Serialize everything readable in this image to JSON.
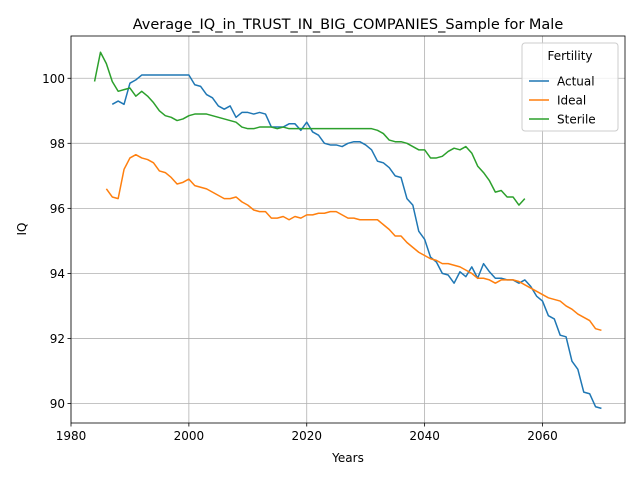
{
  "chart_data": {
    "type": "line",
    "title": "Average_IQ_in_TRUST_IN_BIG_COMPANIES_Sample for Male",
    "xlabel": "Years",
    "ylabel": "IQ",
    "xlim": [
      1980,
      2074
    ],
    "ylim": [
      89.4,
      101.3
    ],
    "xticks": [
      1980,
      2000,
      2020,
      2040,
      2060
    ],
    "yticks": [
      90,
      92,
      94,
      96,
      98,
      100
    ],
    "grid": true,
    "legend": {
      "title": "Fertility",
      "placement": "top-right"
    },
    "series": [
      {
        "name": "Actual",
        "color": "#1f77b4",
        "x": [
          1987,
          1988,
          1989,
          1990,
          1991,
          1992,
          1993,
          1994,
          1995,
          1996,
          1997,
          1998,
          1999,
          2000,
          2001,
          2002,
          2003,
          2004,
          2005,
          2006,
          2007,
          2008,
          2009,
          2010,
          2011,
          2012,
          2013,
          2014,
          2015,
          2016,
          2017,
          2018,
          2019,
          2020,
          2021,
          2022,
          2023,
          2024,
          2025,
          2026,
          2027,
          2028,
          2029,
          2030,
          2031,
          2032,
          2033,
          2034,
          2035,
          2036,
          2037,
          2038,
          2039,
          2040,
          2041,
          2042,
          2043,
          2044,
          2045,
          2046,
          2047,
          2048,
          2049,
          2050,
          2051,
          2052,
          2053,
          2054,
          2055,
          2056,
          2057,
          2058,
          2059,
          2060,
          2061,
          2062,
          2063,
          2064,
          2065,
          2066,
          2067,
          2068,
          2069,
          2070
        ],
        "values": [
          99.2,
          99.3,
          99.2,
          99.85,
          99.95,
          100.1,
          100.1,
          100.1,
          100.1,
          100.1,
          100.1,
          100.1,
          100.1,
          100.1,
          99.8,
          99.75,
          99.5,
          99.4,
          99.15,
          99.05,
          99.15,
          98.8,
          98.95,
          98.95,
          98.9,
          98.95,
          98.9,
          98.5,
          98.5,
          98.5,
          98.6,
          98.6,
          98.4,
          98.65,
          98.35,
          98.25,
          98.0,
          97.95,
          97.95,
          97.9,
          98.0,
          98.05,
          98.05,
          97.95,
          97.8,
          97.45,
          97.4,
          97.25,
          97.0,
          96.95,
          96.3,
          96.1,
          95.3,
          95.05,
          94.5,
          94.35,
          94.0,
          93.95,
          93.7,
          94.05,
          93.9,
          94.2,
          93.85,
          94.3,
          94.05,
          93.85,
          93.85,
          93.8,
          93.8,
          93.7,
          93.8,
          93.6,
          93.3,
          93.15,
          92.7,
          92.6,
          92.1,
          92.05,
          91.3,
          91.05,
          90.35,
          90.3,
          89.9,
          89.85
        ]
      },
      {
        "name": "Ideal",
        "color": "#ff7f0e",
        "x": [
          1986,
          1987,
          1988,
          1989,
          1990,
          1991,
          1992,
          1993,
          1994,
          1995,
          1996,
          1997,
          1998,
          1999,
          2000,
          2001,
          2002,
          2003,
          2004,
          2005,
          2006,
          2007,
          2008,
          2009,
          2010,
          2011,
          2012,
          2013,
          2014,
          2015,
          2016,
          2017,
          2018,
          2019,
          2020,
          2021,
          2022,
          2023,
          2024,
          2025,
          2026,
          2027,
          2028,
          2029,
          2030,
          2031,
          2032,
          2033,
          2034,
          2035,
          2036,
          2037,
          2038,
          2039,
          2040,
          2041,
          2042,
          2043,
          2044,
          2045,
          2046,
          2047,
          2048,
          2049,
          2050,
          2051,
          2052,
          2053,
          2054,
          2055,
          2056,
          2057,
          2058,
          2059,
          2060,
          2061,
          2062,
          2063,
          2064,
          2065,
          2066,
          2067,
          2068,
          2069,
          2070
        ],
        "values": [
          96.6,
          96.35,
          96.3,
          97.2,
          97.55,
          97.65,
          97.55,
          97.5,
          97.4,
          97.15,
          97.1,
          96.95,
          96.75,
          96.8,
          96.9,
          96.7,
          96.65,
          96.6,
          96.5,
          96.4,
          96.3,
          96.3,
          96.35,
          96.2,
          96.1,
          95.95,
          95.9,
          95.9,
          95.7,
          95.7,
          95.75,
          95.65,
          95.75,
          95.7,
          95.8,
          95.8,
          95.85,
          95.85,
          95.9,
          95.9,
          95.8,
          95.7,
          95.7,
          95.65,
          95.65,
          95.65,
          95.65,
          95.5,
          95.35,
          95.15,
          95.15,
          94.95,
          94.8,
          94.65,
          94.55,
          94.45,
          94.4,
          94.3,
          94.3,
          94.25,
          94.2,
          94.1,
          94.0,
          93.85,
          93.85,
          93.8,
          93.7,
          93.8,
          93.8,
          93.8,
          93.75,
          93.65,
          93.55,
          93.45,
          93.35,
          93.25,
          93.2,
          93.15,
          93.0,
          92.9,
          92.75,
          92.65,
          92.55,
          92.3,
          92.25
        ]
      },
      {
        "name": "Sterile",
        "color": "#2ca02c",
        "x": [
          1984,
          1985,
          1986,
          1987,
          1988,
          1989,
          1990,
          1991,
          1992,
          1993,
          1994,
          1995,
          1996,
          1997,
          1998,
          1999,
          2000,
          2001,
          2002,
          2003,
          2004,
          2005,
          2006,
          2007,
          2008,
          2009,
          2010,
          2011,
          2012,
          2013,
          2014,
          2015,
          2016,
          2017,
          2018,
          2019,
          2020,
          2021,
          2022,
          2023,
          2024,
          2025,
          2026,
          2027,
          2028,
          2029,
          2030,
          2031,
          2032,
          2033,
          2034,
          2035,
          2036,
          2037,
          2038,
          2039,
          2040,
          2041,
          2042,
          2043,
          2044,
          2045,
          2046,
          2047,
          2048,
          2049,
          2050,
          2051,
          2052,
          2053,
          2054,
          2055,
          2056,
          2057
        ],
        "values": [
          99.9,
          100.8,
          100.45,
          99.9,
          99.6,
          99.65,
          99.7,
          99.45,
          99.6,
          99.45,
          99.25,
          99.0,
          98.85,
          98.8,
          98.7,
          98.75,
          98.85,
          98.9,
          98.9,
          98.9,
          98.85,
          98.8,
          98.75,
          98.7,
          98.65,
          98.5,
          98.45,
          98.45,
          98.5,
          98.5,
          98.5,
          98.45,
          98.5,
          98.45,
          98.45,
          98.45,
          98.45,
          98.45,
          98.45,
          98.45,
          98.45,
          98.45,
          98.45,
          98.45,
          98.45,
          98.45,
          98.45,
          98.45,
          98.4,
          98.3,
          98.1,
          98.05,
          98.05,
          98.0,
          97.9,
          97.8,
          97.8,
          97.55,
          97.55,
          97.6,
          97.75,
          97.85,
          97.8,
          97.9,
          97.7,
          97.3,
          97.1,
          96.85,
          96.5,
          96.55,
          96.35,
          96.35,
          96.1,
          96.3
        ]
      }
    ]
  }
}
